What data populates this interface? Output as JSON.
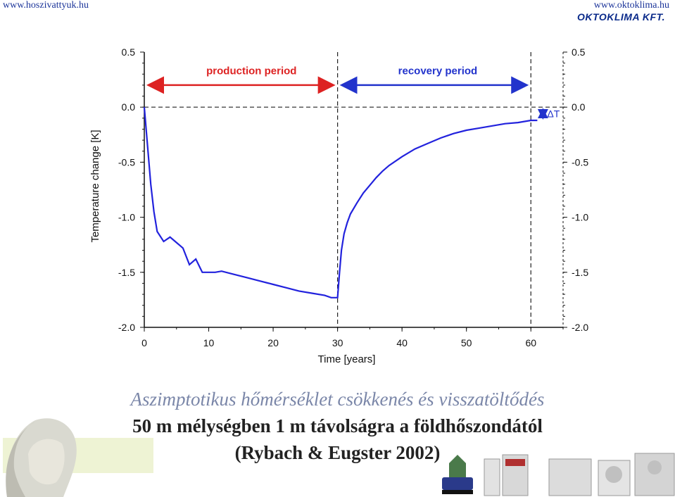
{
  "header": {
    "left_url": "www.hoszivattyuk.hu",
    "right_url": "www.oktoklima.hu",
    "brand": "OKTOKLIMA KFT."
  },
  "caption": {
    "line1": "Aszimptotikus hőmérséklet csökkenés és visszatöltődés",
    "line2": "50 m mélységben 1 m távolságra a földhőszondától",
    "line3": "(Rybach & Eugster 2002)"
  },
  "chart_data": {
    "type": "line",
    "xlabel": "Time [years]",
    "ylabel": "Temperature change [K]",
    "xlim": [
      0,
      65
    ],
    "ylim": [
      -2.0,
      0.5
    ],
    "x_ticks": [
      "0",
      "10",
      "20",
      "30",
      "40",
      "50",
      "60"
    ],
    "y_ticks": [
      "0.5",
      "0.0",
      "-0.5",
      "-1.0",
      "-1.5",
      "-2.0"
    ],
    "grid": false,
    "annotations": {
      "production": "production period",
      "recovery": "recovery period",
      "delta": "ΔT"
    },
    "colors": {
      "curve": "#2222dd",
      "production_arrow": "#dd2222",
      "recovery_arrow": "#2233cc",
      "dashed": "#222222"
    },
    "series": [
      {
        "x": [
          0,
          0.5,
          1,
          1.5,
          2,
          3,
          4,
          5,
          6,
          7,
          8,
          9,
          10,
          11,
          12,
          14,
          16,
          18,
          20,
          22,
          24,
          26,
          28,
          29,
          30,
          30.3,
          30.6,
          31,
          31.5,
          32,
          33,
          34,
          35,
          36,
          37,
          38,
          40,
          42,
          44,
          46,
          48,
          50,
          52,
          54,
          56,
          58,
          60,
          61
        ],
        "y": [
          0.0,
          -0.35,
          -0.7,
          -0.95,
          -1.13,
          -1.22,
          -1.18,
          -1.23,
          -1.28,
          -1.43,
          -1.38,
          -1.5,
          -1.5,
          -1.5,
          -1.49,
          -1.52,
          -1.55,
          -1.58,
          -1.61,
          -1.64,
          -1.67,
          -1.69,
          -1.71,
          -1.73,
          -1.73,
          -1.5,
          -1.3,
          -1.15,
          -1.05,
          -0.97,
          -0.87,
          -0.78,
          -0.71,
          -0.64,
          -0.58,
          -0.53,
          -0.45,
          -0.38,
          -0.33,
          -0.28,
          -0.24,
          -0.21,
          -0.19,
          -0.17,
          -0.15,
          -0.14,
          -0.12,
          -0.12
        ]
      }
    ]
  }
}
